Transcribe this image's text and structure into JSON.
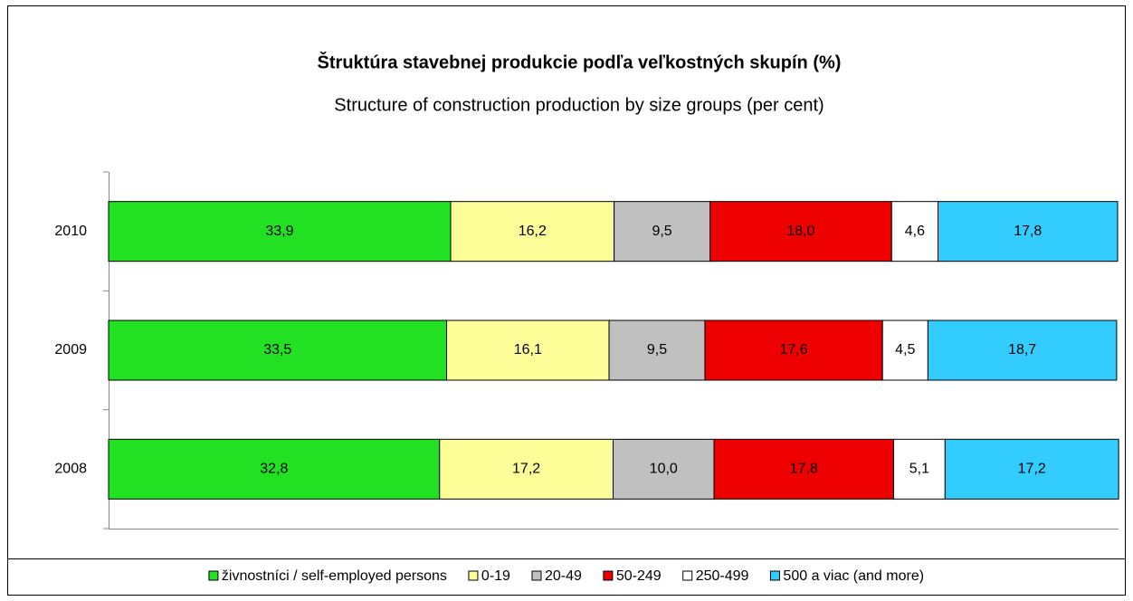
{
  "chart_data": {
    "type": "stacked-bar-horizontal",
    "title": "Štruktúra stavebnej produkcie podľa veľkostných skupín (%)",
    "subtitle": "Structure of construction production by size groups (per cent)",
    "categories": [
      "2010",
      "2009",
      "2008"
    ],
    "xlim": [
      0,
      100
    ],
    "series": [
      {
        "name": "živnostníci / self-employed persons",
        "color": "#22e022",
        "values": [
          33.9,
          33.5,
          32.8
        ],
        "value_labels": [
          "33,9",
          "33,5",
          "32,8"
        ]
      },
      {
        "name": "0-19",
        "color": "#ffff99",
        "values": [
          16.2,
          16.1,
          17.2
        ],
        "value_labels": [
          "16,2",
          "16,1",
          "17,2"
        ]
      },
      {
        "name": "20-49",
        "color": "#c0c0c0",
        "values": [
          9.5,
          9.5,
          10.0
        ],
        "value_labels": [
          "9,5",
          "9,5",
          "10,0"
        ]
      },
      {
        "name": "50-249",
        "color": "#ee0000",
        "values": [
          18.0,
          17.6,
          17.8
        ],
        "value_labels": [
          "18,0",
          "17,6",
          "17,8"
        ]
      },
      {
        "name": "250-499",
        "color": "#ffffff",
        "values": [
          4.6,
          4.5,
          5.1
        ],
        "value_labels": [
          "4,6",
          "4,5",
          "5,1"
        ]
      },
      {
        "name": "500 a viac (and more)",
        "color": "#33ccff",
        "values": [
          17.8,
          18.7,
          17.2
        ],
        "value_labels": [
          "17,8",
          "18,7",
          "17,2"
        ]
      }
    ]
  }
}
